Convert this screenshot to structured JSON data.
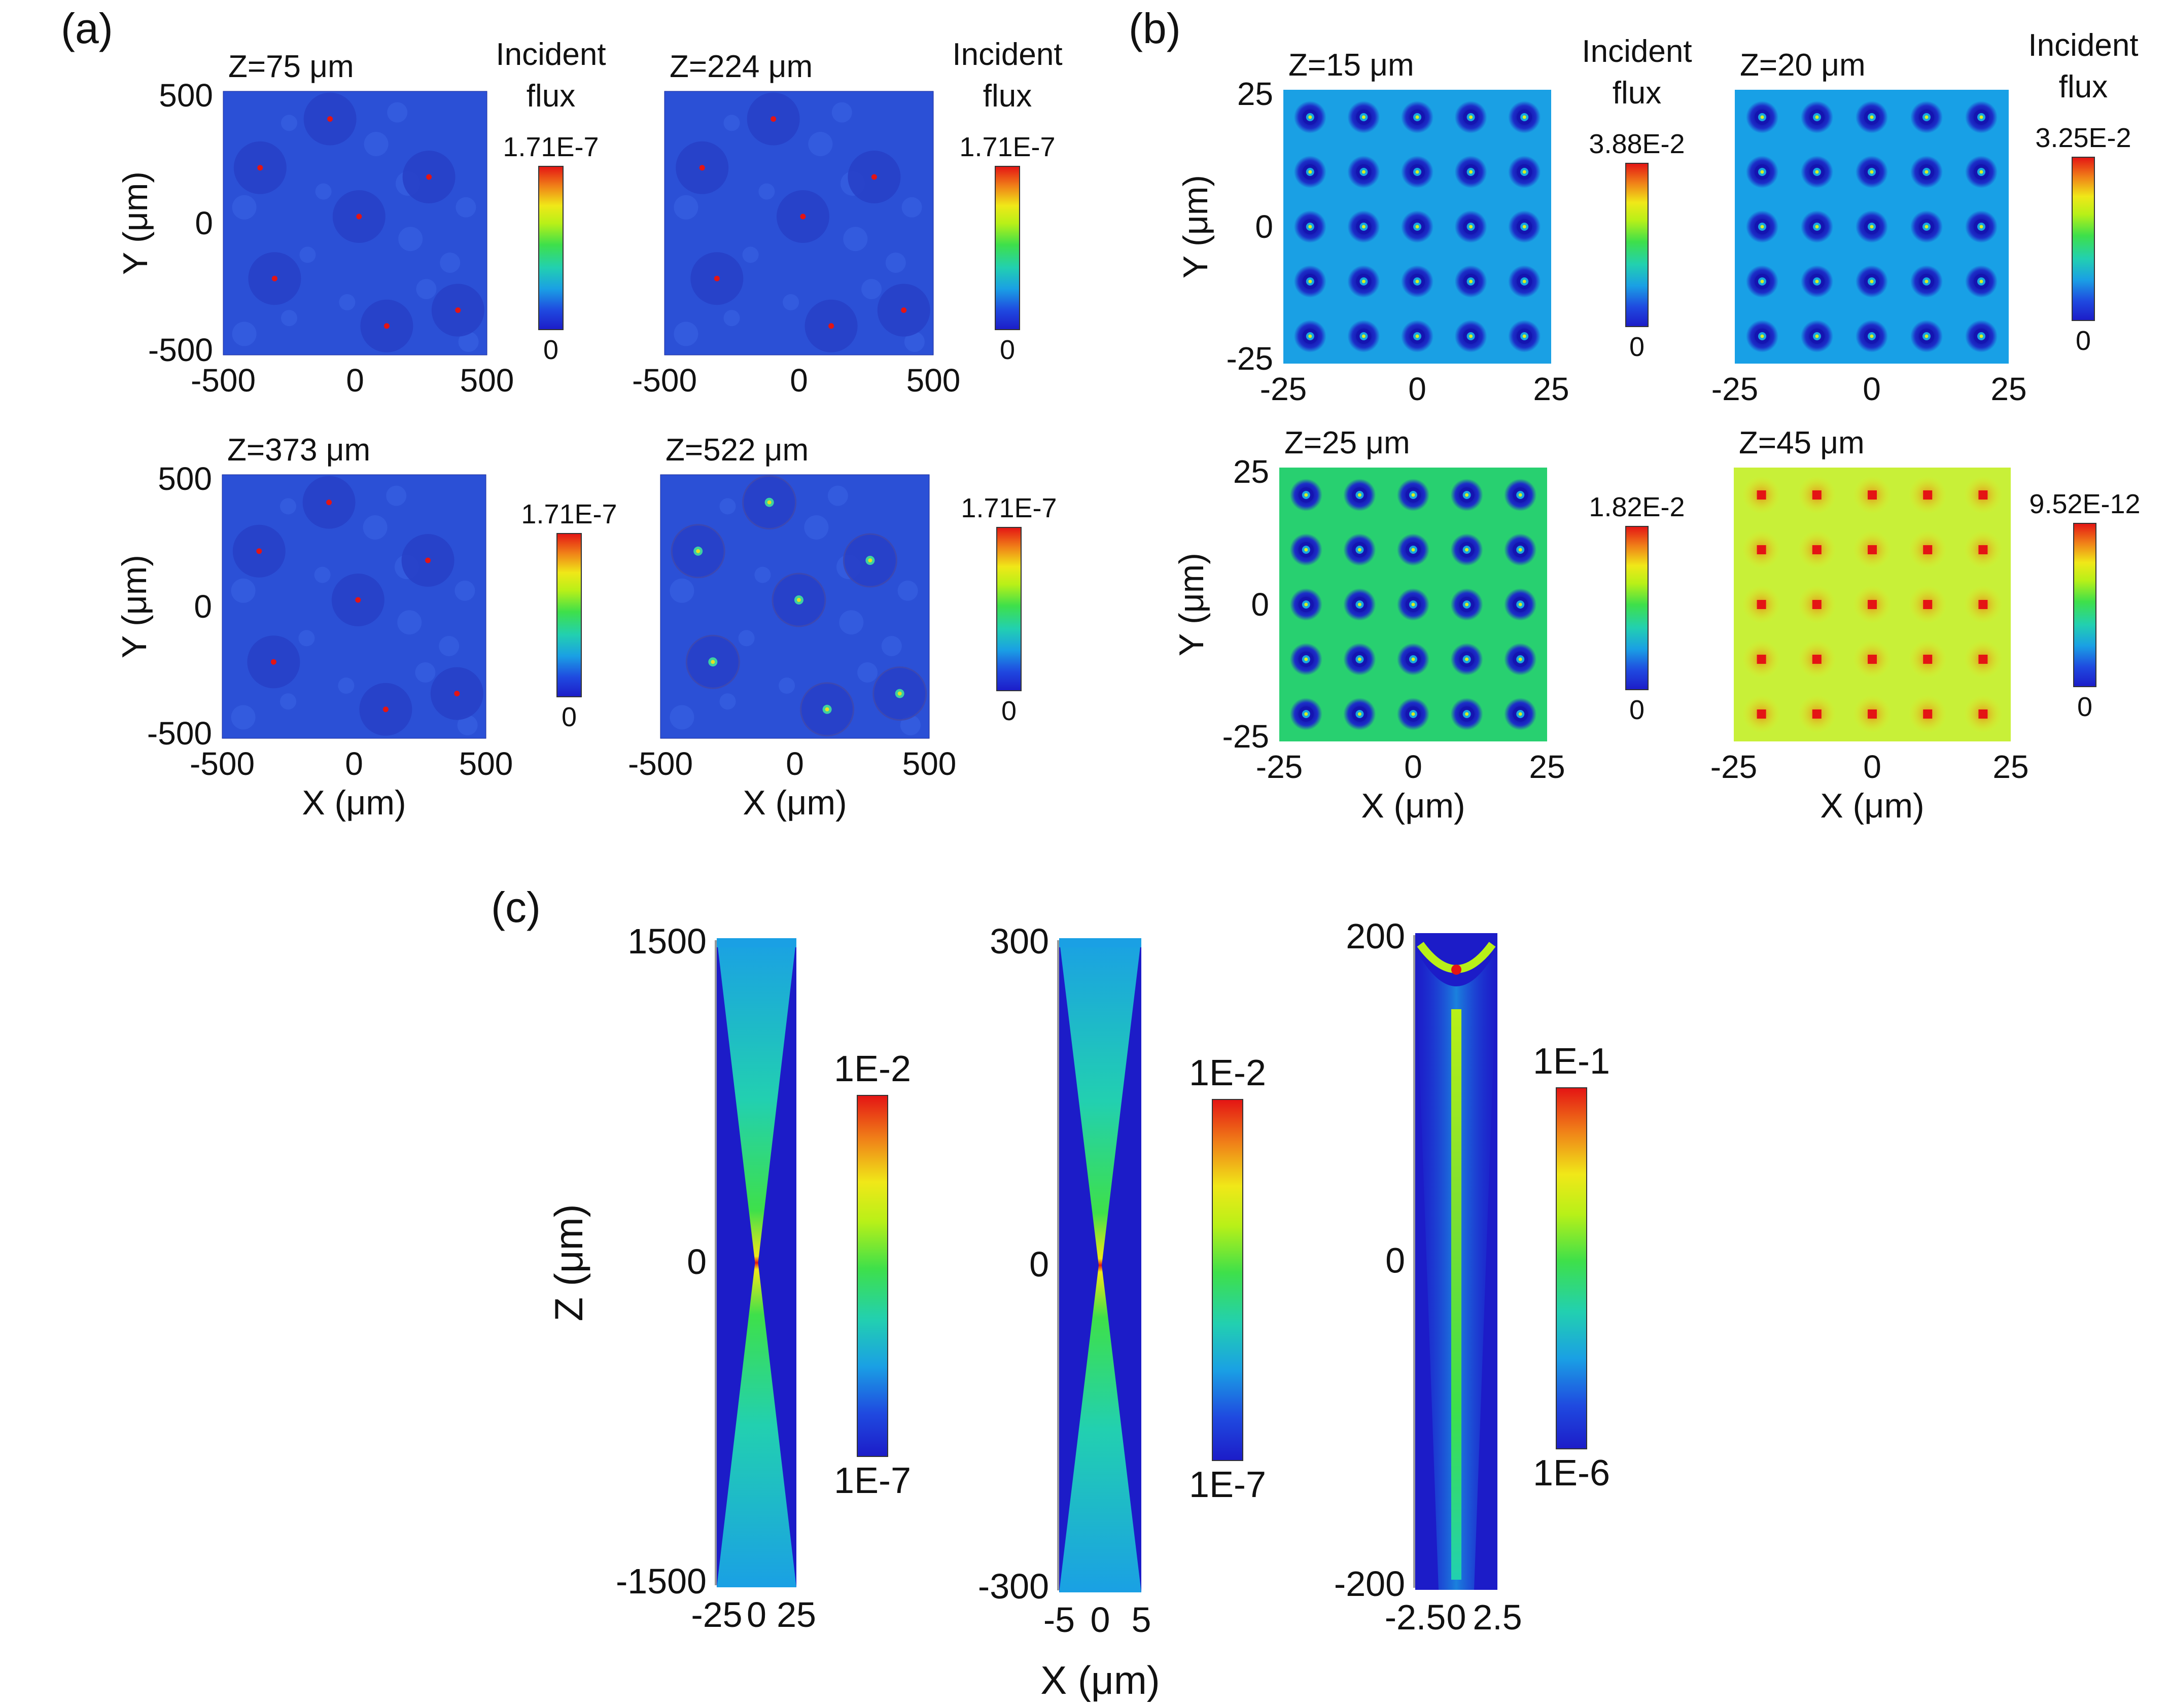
{
  "panel_labels": {
    "a": "(a)",
    "b": "(b)",
    "c": "(c)"
  },
  "colorbar_title": [
    "Incident",
    "flux"
  ],
  "colors": {
    "scale": [
      "#1c1cc8",
      "#1f4ae0",
      "#1aa0e4",
      "#22d0b0",
      "#3ee04a",
      "#b8f018",
      "#f0e818",
      "#f08018",
      "#e41414"
    ],
    "a_background": "#2b50d6",
    "b_ring": "#1414b0",
    "spot_red": "#e41414"
  },
  "chart_data": [
    {
      "id": "a1",
      "type": "heatmap",
      "panel": "(a)",
      "title": "Z=75 μm",
      "xlabel": "",
      "ylabel": "Y (μm)",
      "xlim": [
        -500,
        500
      ],
      "ylim": [
        -500,
        500
      ],
      "xticks": [
        "-500",
        "0",
        "500"
      ],
      "yticks": [
        "500",
        "0",
        "-500"
      ],
      "colorbar": {
        "max": "1.71E-7",
        "min": "0",
        "title": true
      },
      "hotspots": [
        [
          -95,
          395
        ],
        [
          -360,
          210
        ],
        [
          280,
          175
        ],
        [
          15,
          25
        ],
        [
          -305,
          -210
        ],
        [
          120,
          -390
        ],
        [
          390,
          -330
        ]
      ]
    },
    {
      "id": "a2",
      "type": "heatmap",
      "panel": "(a)",
      "title": "Z=224 μm",
      "xlabel": "",
      "ylabel": "",
      "xlim": [
        -500,
        500
      ],
      "ylim": [
        -500,
        500
      ],
      "xticks": [
        "-500",
        "0",
        "500"
      ],
      "yticks": [],
      "colorbar": {
        "max": "1.71E-7",
        "min": "0",
        "title": true
      },
      "hotspots": [
        [
          -95,
          395
        ],
        [
          -360,
          210
        ],
        [
          280,
          175
        ],
        [
          15,
          25
        ],
        [
          -305,
          -210
        ],
        [
          120,
          -390
        ],
        [
          390,
          -330
        ]
      ]
    },
    {
      "id": "a3",
      "type": "heatmap",
      "panel": "(a)",
      "title": "Z=373 μm",
      "xlabel": "X (μm)",
      "ylabel": "Y (μm)",
      "xlim": [
        -500,
        500
      ],
      "ylim": [
        -500,
        500
      ],
      "xticks": [
        "-500",
        "0",
        "500"
      ],
      "yticks": [
        "500",
        "0",
        "-500"
      ],
      "colorbar": {
        "max": "1.71E-7",
        "min": "0",
        "title": false
      },
      "hotspots": [
        [
          -95,
          395
        ],
        [
          -360,
          210
        ],
        [
          280,
          175
        ],
        [
          15,
          25
        ],
        [
          -305,
          -210
        ],
        [
          120,
          -390
        ],
        [
          390,
          -330
        ]
      ]
    },
    {
      "id": "a4",
      "type": "heatmap",
      "panel": "(a)",
      "title": "Z=522 μm",
      "xlabel": "X (μm)",
      "ylabel": "",
      "xlim": [
        -500,
        500
      ],
      "ylim": [
        -500,
        500
      ],
      "xticks": [
        "-500",
        "0",
        "500"
      ],
      "yticks": [],
      "colorbar": {
        "max": "1.71E-7",
        "min": "0",
        "title": false
      },
      "hotspots": [
        [
          -95,
          395
        ],
        [
          -360,
          210
        ],
        [
          280,
          175
        ],
        [
          15,
          25
        ],
        [
          -305,
          -210
        ],
        [
          120,
          -390
        ],
        [
          390,
          -330
        ]
      ]
    },
    {
      "id": "b1",
      "type": "heatmap",
      "panel": "(b)",
      "title": "Z=15 μm",
      "xlabel": "",
      "ylabel": "Y (μm)",
      "xlim": [
        -25,
        25
      ],
      "ylim": [
        -25,
        25
      ],
      "xticks": [
        "-25",
        "0",
        "25"
      ],
      "yticks": [
        "25",
        "0",
        "-25"
      ],
      "colorbar": {
        "max": "3.88E-2",
        "min": "0",
        "title": true
      },
      "grid_spots": [
        -20,
        -10,
        0,
        10,
        20
      ],
      "background": "#1aa0e4",
      "spot_center": "#d8f020"
    },
    {
      "id": "b2",
      "type": "heatmap",
      "panel": "(b)",
      "title": "Z=20 μm",
      "xlabel": "",
      "ylabel": "",
      "xlim": [
        -25,
        25
      ],
      "ylim": [
        -25,
        25
      ],
      "xticks": [
        "-25",
        "0",
        "25"
      ],
      "yticks": [],
      "colorbar": {
        "max": "3.25E-2",
        "min": "0",
        "title": true
      },
      "grid_spots": [
        -20,
        -10,
        0,
        10,
        20
      ],
      "background": "#18a0e6",
      "spot_center": "#d8f020"
    },
    {
      "id": "b3",
      "type": "heatmap",
      "panel": "(b)",
      "title": "Z=25 μm",
      "xlabel": "X (μm)",
      "ylabel": "Y (μm)",
      "xlim": [
        -25,
        25
      ],
      "ylim": [
        -25,
        25
      ],
      "xticks": [
        "-25",
        "0",
        "25"
      ],
      "yticks": [
        "25",
        "0",
        "-25"
      ],
      "colorbar": {
        "max": "1.82E-2",
        "min": "0",
        "title": false
      },
      "grid_spots": [
        -20,
        -10,
        0,
        10,
        20
      ],
      "background": "#28d070",
      "spot_center": "#d8f020"
    },
    {
      "id": "b4",
      "type": "heatmap",
      "panel": "(b)",
      "title": "Z=45 μm",
      "xlabel": "X (μm)",
      "ylabel": "",
      "xlim": [
        -25,
        25
      ],
      "ylim": [
        -25,
        25
      ],
      "xticks": [
        "-25",
        "0",
        "25"
      ],
      "yticks": [],
      "colorbar": {
        "max": "9.52E-12",
        "min": "0",
        "title": false
      },
      "grid_spots": [
        -20,
        -10,
        0,
        10,
        20
      ],
      "background": "#c8f038",
      "spot_center": "#e41414"
    },
    {
      "id": "c1",
      "type": "heatmap",
      "panel": "(c)",
      "title": "",
      "xlabel": "",
      "ylabel": "Z (μm)",
      "xlim": [
        -25,
        25
      ],
      "ylim": [
        -1500,
        1500
      ],
      "xticks": [
        "-25",
        "0",
        "25"
      ],
      "yticks": [
        "1500",
        "0",
        "-1500"
      ],
      "colorbar": {
        "max": "1E-2",
        "min": "1E-7"
      },
      "profile": "focus-cone"
    },
    {
      "id": "c2",
      "type": "heatmap",
      "panel": "(c)",
      "title": "",
      "xlabel": "X (μm)",
      "ylabel": "",
      "xlim": [
        -5,
        5
      ],
      "ylim": [
        -300,
        300
      ],
      "xticks": [
        "-5",
        "0",
        "5"
      ],
      "yticks": [
        "300",
        "0",
        "-300"
      ],
      "colorbar": {
        "max": "1E-2",
        "min": "1E-7"
      },
      "profile": "focus-cone"
    },
    {
      "id": "c3",
      "type": "heatmap",
      "panel": "(c)",
      "title": "",
      "xlabel": "",
      "ylabel": "",
      "xlim": [
        -2.5,
        2.5
      ],
      "ylim": [
        -200,
        200
      ],
      "xticks": [
        "-2.5",
        "0",
        "2.5"
      ],
      "yticks": [
        "200",
        "0",
        "-200"
      ],
      "colorbar": {
        "max": "1E-1",
        "min": "1E-6"
      },
      "profile": "waveguide-beam"
    }
  ]
}
